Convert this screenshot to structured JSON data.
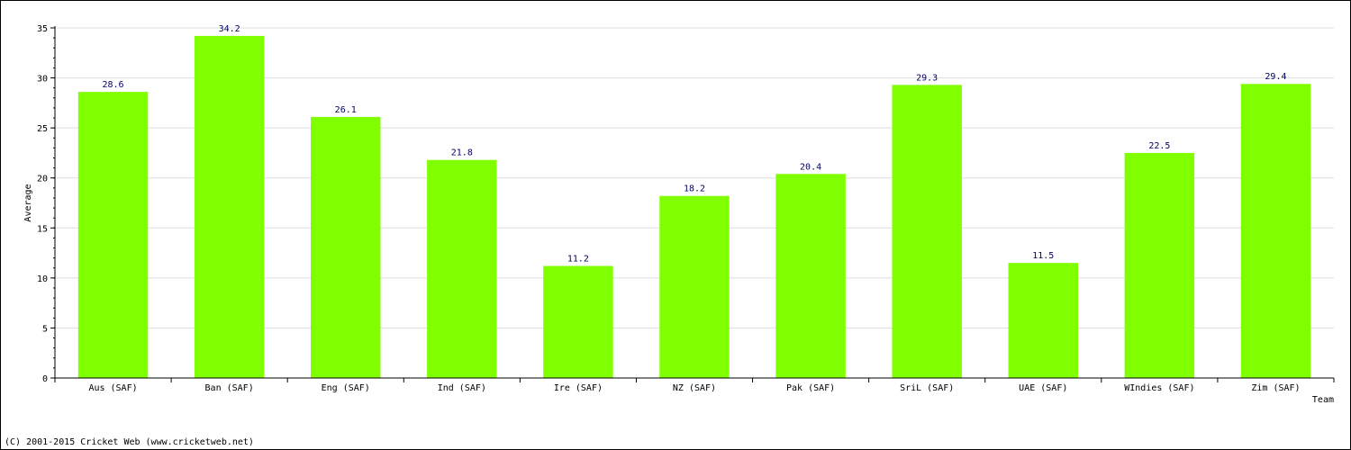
{
  "chart_data": {
    "type": "bar",
    "categories": [
      "Aus (SAF)",
      "Ban (SAF)",
      "Eng (SAF)",
      "Ind (SAF)",
      "Ire (SAF)",
      "NZ (SAF)",
      "Pak (SAF)",
      "SriL (SAF)",
      "UAE (SAF)",
      "WIndies (SAF)",
      "Zim (SAF)"
    ],
    "values": [
      28.6,
      34.2,
      26.1,
      21.8,
      11.2,
      18.2,
      20.4,
      29.3,
      11.5,
      22.5,
      29.4
    ],
    "value_labels": [
      "28.6",
      "34.2",
      "26.1",
      "21.8",
      "11.2",
      "18.2",
      "20.4",
      "29.3",
      "11.5",
      "22.5",
      "29.4"
    ],
    "xlabel": "Team",
    "ylabel": "Average",
    "ylim": [
      0,
      35
    ],
    "yticks": [
      0,
      5,
      10,
      15,
      20,
      25,
      30,
      35
    ],
    "grid": true,
    "bar_color": "#7fff00",
    "value_label_color": "#000066"
  },
  "footer": {
    "copyright": "(C) 2001-2015 Cricket Web (www.cricketweb.net)"
  }
}
